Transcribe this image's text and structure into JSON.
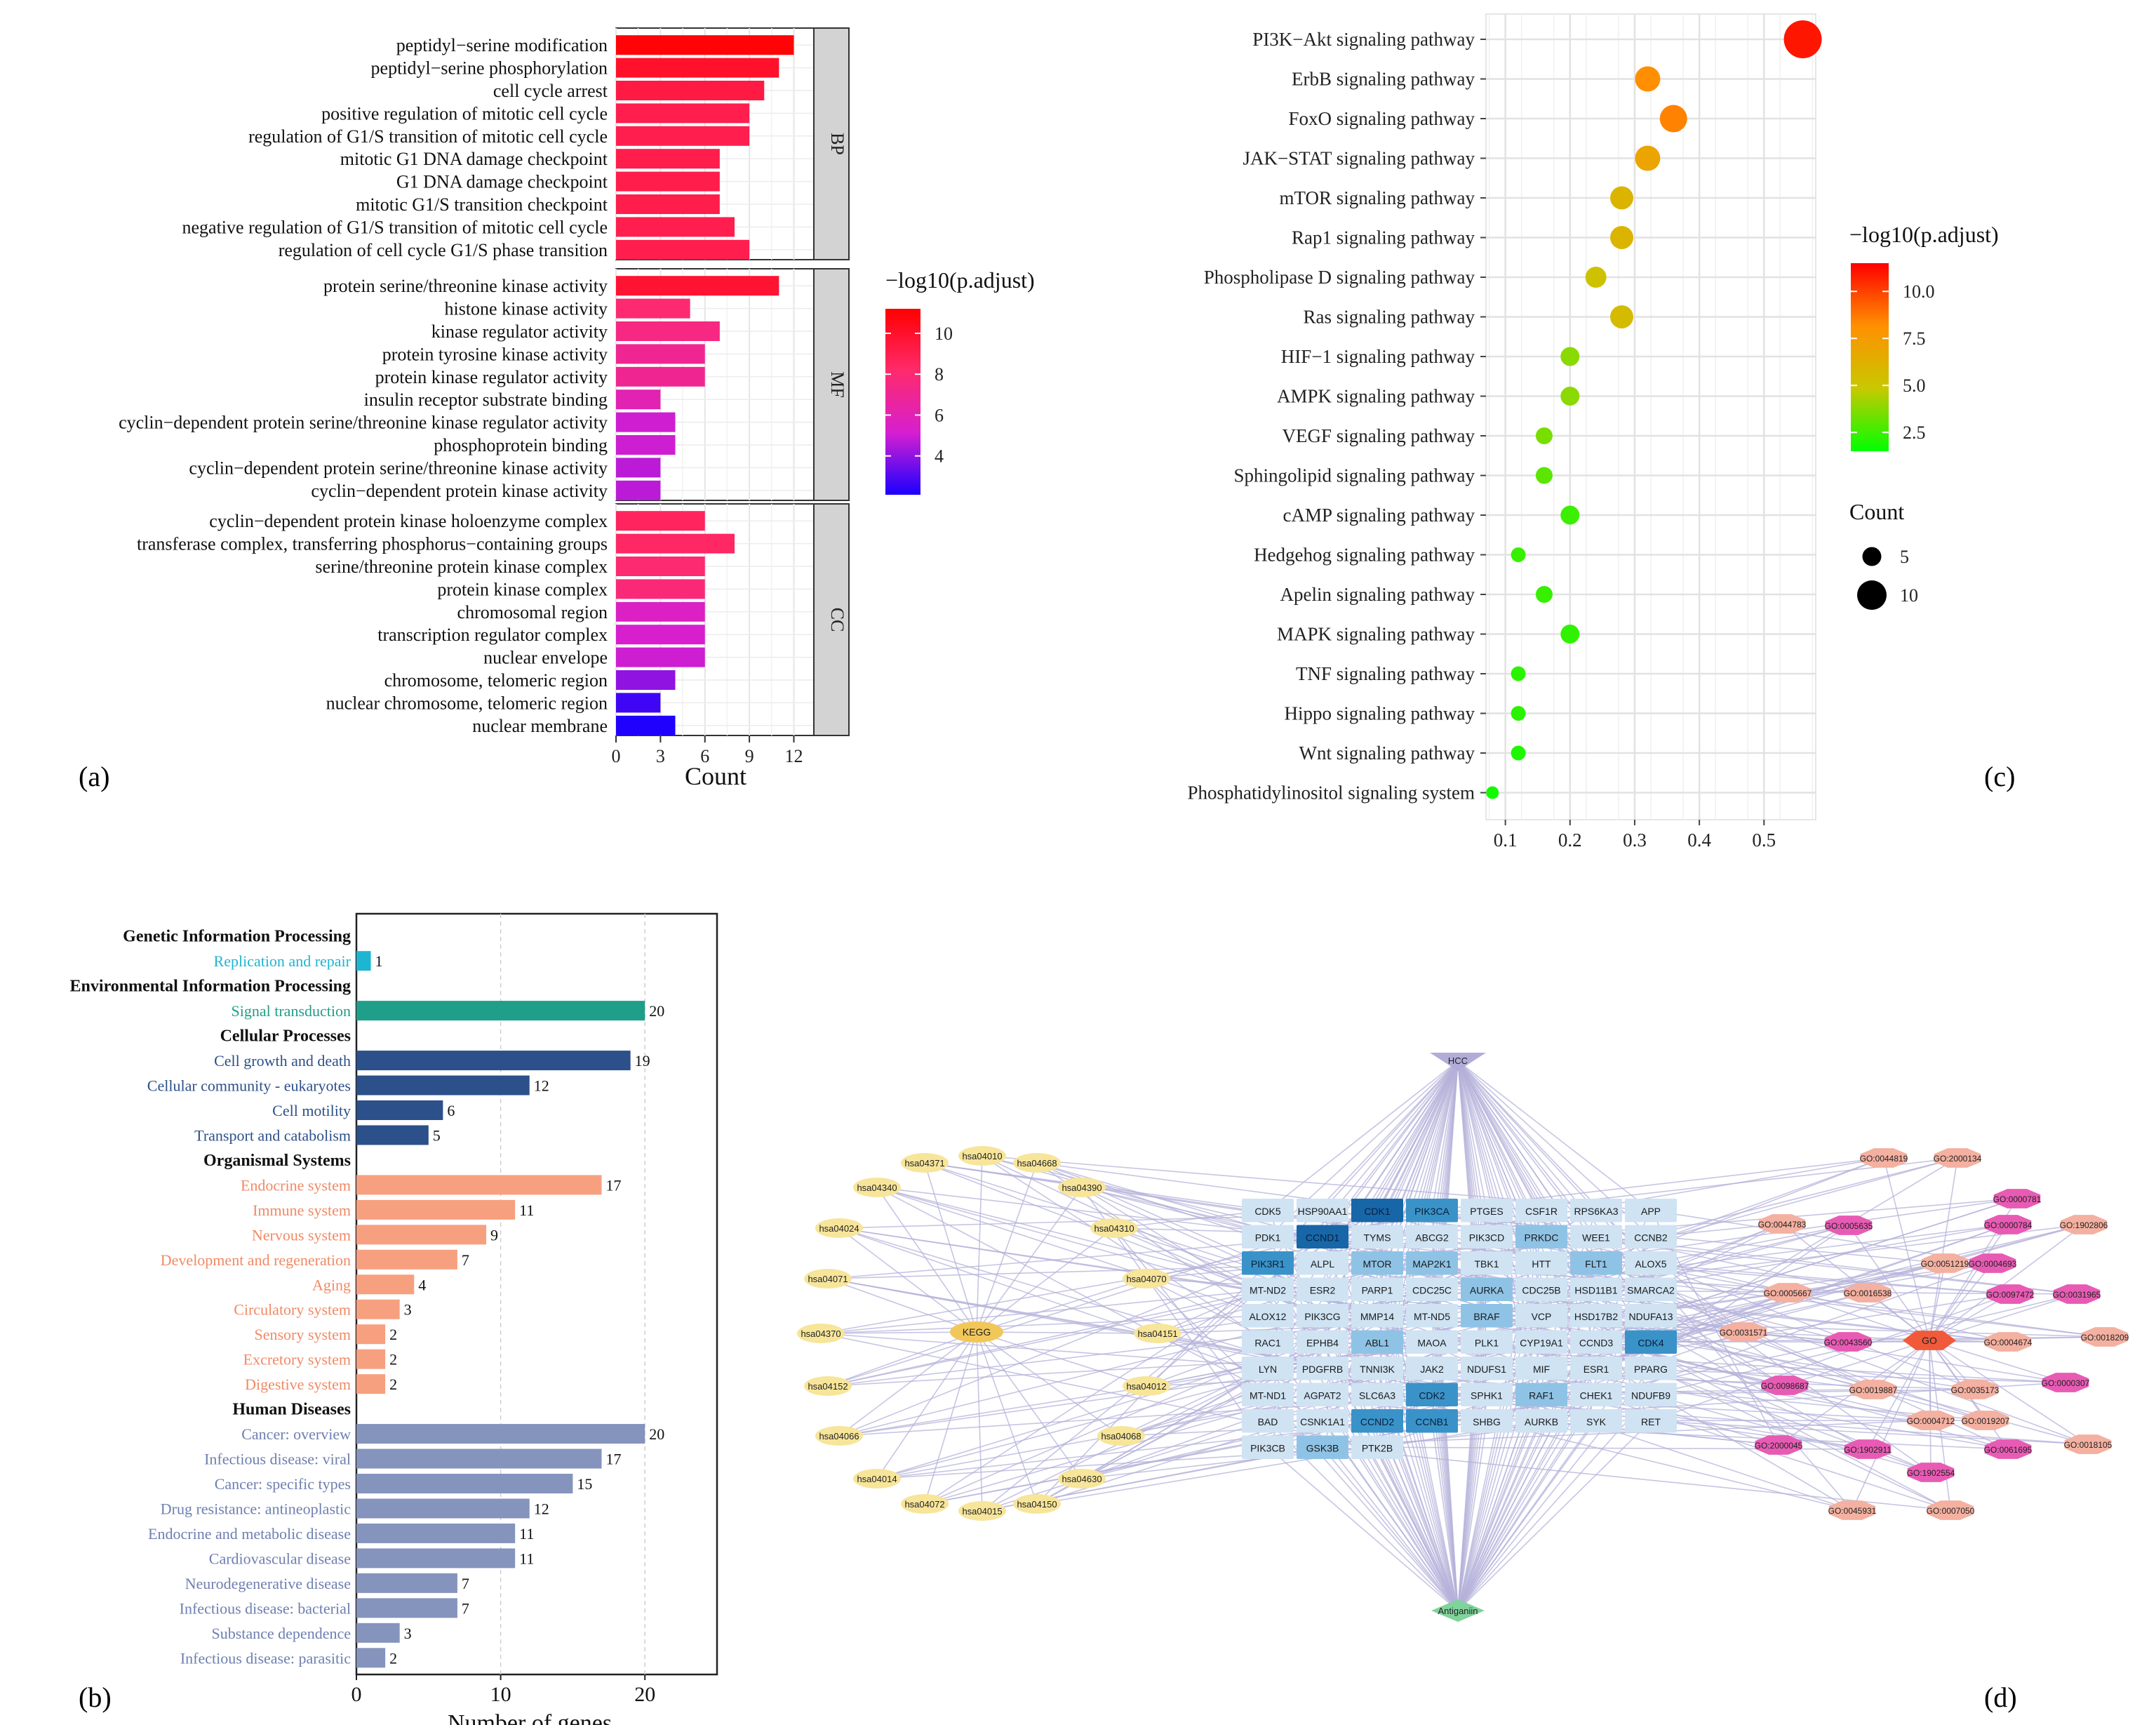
{
  "panel_labels": {
    "a": "(a)",
    "b": "(b)",
    "c": "(c)",
    "d": "(d)"
  },
  "chart_data": [
    {
      "id": "a",
      "type": "bar",
      "orientation": "horizontal",
      "xlabel": "Count",
      "xlim": [
        0,
        14
      ],
      "xticks": [
        0,
        3,
        6,
        9,
        12
      ],
      "color_scale": {
        "title": "−log10(p.adjust)",
        "ticks": [
          4,
          6,
          8,
          10
        ],
        "range": [
          2.1,
          11.2
        ],
        "colors": [
          "#1a00ff",
          "#d61fd0",
          "#ff2a6c",
          "#ff0000"
        ]
      },
      "facets": [
        {
          "name": "BP",
          "terms": [
            {
              "label": "peptidyl−serine modification",
              "count": 12,
              "neglog": 11.0
            },
            {
              "label": "peptidyl−serine phosphorylation",
              "count": 11,
              "neglog": 10.0
            },
            {
              "label": "cell cycle arrest",
              "count": 10,
              "neglog": 9.3
            },
            {
              "label": "positive regulation of mitotic cell cycle",
              "count": 9,
              "neglog": 9.0
            },
            {
              "label": "regulation of G1/S transition of mitotic cell cycle",
              "count": 9,
              "neglog": 9.0
            },
            {
              "label": "mitotic G1 DNA damage checkpoint",
              "count": 7,
              "neglog": 9.1
            },
            {
              "label": "G1 DNA damage checkpoint",
              "count": 7,
              "neglog": 9.1
            },
            {
              "label": "mitotic G1/S transition checkpoint",
              "count": 7,
              "neglog": 9.1
            },
            {
              "label": "negative regulation of G1/S transition of mitotic cell cycle",
              "count": 8,
              "neglog": 9.0
            },
            {
              "label": "regulation of cell cycle G1/S phase transition",
              "count": 9,
              "neglog": 9.0
            }
          ]
        },
        {
          "name": "MF",
          "terms": [
            {
              "label": "protein serine/threonine kinase activity",
              "count": 11,
              "neglog": 9.8
            },
            {
              "label": "histone kinase activity",
              "count": 5,
              "neglog": 8.0
            },
            {
              "label": "kinase regulator activity",
              "count": 7,
              "neglog": 7.5
            },
            {
              "label": "protein tyrosine kinase activity",
              "count": 6,
              "neglog": 7.0
            },
            {
              "label": "protein kinase regulator activity",
              "count": 6,
              "neglog": 7.0
            },
            {
              "label": "insulin receptor substrate binding",
              "count": 3,
              "neglog": 6.0
            },
            {
              "label": "cyclin−dependent protein serine/threonine kinase regulator activity",
              "count": 4,
              "neglog": 5.0
            },
            {
              "label": "phosphoprotein binding",
              "count": 4,
              "neglog": 5.0
            },
            {
              "label": "cyclin−dependent protein serine/threonine kinase activity",
              "count": 3,
              "neglog": 4.7
            },
            {
              "label": "cyclin−dependent protein kinase activity",
              "count": 3,
              "neglog": 4.7
            }
          ]
        },
        {
          "name": "CC",
          "terms": [
            {
              "label": "cyclin−dependent protein kinase holoenzyme complex",
              "count": 6,
              "neglog": 8.6
            },
            {
              "label": "transferase complex, transferring phosphorus−containing groups",
              "count": 8,
              "neglog": 8.4
            },
            {
              "label": "serine/threonine protein kinase complex",
              "count": 6,
              "neglog": 8.0
            },
            {
              "label": "protein kinase complex",
              "count": 6,
              "neglog": 7.8
            },
            {
              "label": "chromosomal region",
              "count": 6,
              "neglog": 5.5
            },
            {
              "label": "transcription regulator complex",
              "count": 6,
              "neglog": 5.2
            },
            {
              "label": "nuclear envelope",
              "count": 6,
              "neglog": 5.0
            },
            {
              "label": "chromosome, telomeric region",
              "count": 4,
              "neglog": 4.0
            },
            {
              "label": "nuclear chromosome, telomeric region",
              "count": 3,
              "neglog": 2.7
            },
            {
              "label": "nuclear membrane",
              "count": 4,
              "neglog": 2.2
            }
          ]
        }
      ]
    },
    {
      "id": "b",
      "type": "bar",
      "orientation": "horizontal",
      "xlabel": "Number of genes",
      "xlim": [
        0,
        25
      ],
      "xticks": [
        0,
        10,
        20
      ],
      "rows": [
        {
          "label": "Genetic Information Processing",
          "header": true
        },
        {
          "label": "Replication and repair",
          "value": 1,
          "color": "#1eb5d2"
        },
        {
          "label": "Environmental Information Processing",
          "header": true
        },
        {
          "label": "Signal transduction",
          "value": 20,
          "color": "#1f9e89"
        },
        {
          "label": "Cellular Processes",
          "header": true
        },
        {
          "label": "Cell growth and death",
          "value": 19,
          "color": "#2c5089"
        },
        {
          "label": "Cellular community - eukaryotes",
          "value": 12,
          "color": "#2c5089"
        },
        {
          "label": "Cell motility",
          "value": 6,
          "color": "#2c5089"
        },
        {
          "label": "Transport and catabolism",
          "value": 5,
          "color": "#2c5089"
        },
        {
          "label": "Organismal Systems",
          "header": true
        },
        {
          "label": "Endocrine system",
          "value": 17,
          "color": "#f7a080"
        },
        {
          "label": "Immune system",
          "value": 11,
          "color": "#f7a080"
        },
        {
          "label": "Nervous system",
          "value": 9,
          "color": "#f7a080"
        },
        {
          "label": "Development and regeneration",
          "value": 7,
          "color": "#f7a080"
        },
        {
          "label": "Aging",
          "value": 4,
          "color": "#f7a080"
        },
        {
          "label": "Circulatory system",
          "value": 3,
          "color": "#f7a080"
        },
        {
          "label": "Sensory system",
          "value": 2,
          "color": "#f7a080"
        },
        {
          "label": "Excretory system",
          "value": 2,
          "color": "#f7a080"
        },
        {
          "label": "Digestive system",
          "value": 2,
          "color": "#f7a080"
        },
        {
          "label": "Human Diseases",
          "header": true
        },
        {
          "label": "Cancer: overview",
          "value": 20,
          "color": "#8594bd"
        },
        {
          "label": "Infectious disease: viral",
          "value": 17,
          "color": "#8594bd"
        },
        {
          "label": "Cancer: specific types",
          "value": 15,
          "color": "#8594bd"
        },
        {
          "label": "Drug resistance: antineoplastic",
          "value": 12,
          "color": "#8594bd"
        },
        {
          "label": "Endocrine and metabolic disease",
          "value": 11,
          "color": "#8594bd"
        },
        {
          "label": "Cardiovascular disease",
          "value": 11,
          "color": "#8594bd"
        },
        {
          "label": "Neurodegenerative disease",
          "value": 7,
          "color": "#8594bd"
        },
        {
          "label": "Infectious disease: bacterial",
          "value": 7,
          "color": "#8594bd"
        },
        {
          "label": "Substance dependence",
          "value": 3,
          "color": "#8594bd"
        },
        {
          "label": "Infectious disease: parasitic",
          "value": 2,
          "color": "#8594bd"
        }
      ]
    },
    {
      "id": "c",
      "type": "scatter",
      "xlim": [
        0.07,
        0.58
      ],
      "xticks": [
        0.1,
        0.2,
        0.3,
        0.4,
        0.5
      ],
      "color_scale": {
        "title": "−log10(p.adjust)",
        "ticks": [
          2.5,
          5.0,
          7.5,
          10.0
        ],
        "range": [
          1.5,
          11.5
        ],
        "colors": [
          "#00ff00",
          "#c8c800",
          "#ff9000",
          "#ff0000"
        ]
      },
      "size_legend": {
        "title": "Count",
        "entries": [
          5,
          10
        ]
      },
      "points": [
        {
          "label": "PI3K−Akt signaling pathway",
          "x": 0.56,
          "count": 14,
          "neglog": 11.0
        },
        {
          "label": "ErbB signaling pathway",
          "x": 0.32,
          "count": 8,
          "neglog": 8.2
        },
        {
          "label": "FoxO signaling pathway",
          "x": 0.36,
          "count": 9,
          "neglog": 8.5
        },
        {
          "label": "JAK−STAT signaling pathway",
          "x": 0.32,
          "count": 8,
          "neglog": 7.0
        },
        {
          "label": "mTOR signaling pathway",
          "x": 0.28,
          "count": 7,
          "neglog": 6.0
        },
        {
          "label": "Rap1 signaling pathway",
          "x": 0.28,
          "count": 7,
          "neglog": 6.0
        },
        {
          "label": "Phospholipase D signaling pathway",
          "x": 0.24,
          "count": 6,
          "neglog": 5.2
        },
        {
          "label": "Ras signaling pathway",
          "x": 0.28,
          "count": 7,
          "neglog": 5.6
        },
        {
          "label": "HIF−1 signaling pathway",
          "x": 0.2,
          "count": 5,
          "neglog": 3.8
        },
        {
          "label": "AMPK signaling pathway",
          "x": 0.2,
          "count": 5,
          "neglog": 3.8
        },
        {
          "label": "VEGF signaling pathway",
          "x": 0.16,
          "count": 4,
          "neglog": 3.5
        },
        {
          "label": "Sphingolipid signaling pathway",
          "x": 0.16,
          "count": 4,
          "neglog": 3.0
        },
        {
          "label": "cAMP signaling pathway",
          "x": 0.2,
          "count": 5,
          "neglog": 2.5
        },
        {
          "label": "Hedgehog signaling pathway",
          "x": 0.12,
          "count": 3,
          "neglog": 2.4
        },
        {
          "label": "Apelin signaling pathway",
          "x": 0.16,
          "count": 4,
          "neglog": 2.4
        },
        {
          "label": "MAPK signaling pathway",
          "x": 0.2,
          "count": 5,
          "neglog": 2.3
        },
        {
          "label": "TNF signaling pathway",
          "x": 0.12,
          "count": 3,
          "neglog": 2.2
        },
        {
          "label": "Hippo signaling pathway",
          "x": 0.12,
          "count": 3,
          "neglog": 2.2
        },
        {
          "label": "Wnt signaling pathway",
          "x": 0.12,
          "count": 3,
          "neglog": 2.0
        },
        {
          "label": "Phosphatidylinositol signaling system",
          "x": 0.08,
          "count": 2,
          "neglog": 1.8
        }
      ]
    }
  ],
  "network": {
    "hub_top": "HCC",
    "hub_bottom": "Antiganiin",
    "hub_left": "KEGG",
    "hub_right": "GO",
    "kegg_nodes": [
      "hsa04371",
      "hsa04010",
      "hsa04668",
      "hsa04340",
      "hsa04390",
      "hsa04024",
      "hsa04310",
      "hsa04071",
      "hsa04070",
      "hsa04370",
      "hsa04151",
      "hsa04152",
      "hsa04012",
      "hsa04066",
      "hsa04068",
      "hsa04014",
      "hsa04630",
      "hsa04072",
      "hsa04015",
      "hsa04150"
    ],
    "go_nodes": [
      "GO:0044819",
      "GO:2000134",
      "GO:0000781",
      "GO:0044783",
      "GO:0005635",
      "GO:0000784",
      "GO:1902806",
      "GO:0051219",
      "GO:0004693",
      "GO:0005667",
      "GO:0016538",
      "GO:0097472",
      "GO:0031965",
      "GO:0031571",
      "GO:0043560",
      "GO:0004674",
      "GO:0018209",
      "GO:0098687",
      "GO:0019887",
      "GO:0035173",
      "GO:0000307",
      "GO:0004712",
      "GO:0019207",
      "GO:2000045",
      "GO:1902911",
      "GO:0061695",
      "GO:0018105",
      "GO:1902554",
      "GO:0045931",
      "GO:0007050"
    ],
    "gene_rows": [
      [
        "CDK5",
        "HSP90AA1",
        "CDK1",
        "PIK3CA",
        "PTGES",
        "CSF1R",
        "RPS6KA3",
        "APP"
      ],
      [
        "PDK1",
        "CCND1",
        "TYMS",
        "ABCG2",
        "PIK3CD",
        "PRKDC",
        "WEE1",
        "CCNB2"
      ],
      [
        "PIK3R1",
        "ALPL",
        "MTOR",
        "MAP2K1",
        "TBK1",
        "HTT",
        "FLT1",
        "ALOX5"
      ],
      [
        "MT-ND2",
        "ESR2",
        "PARP1",
        "CDC25C",
        "AURKA",
        "CDC25B",
        "HSD11B1",
        "SMARCA2"
      ],
      [
        "ALOX12",
        "PIK3CG",
        "MMP14",
        "MT-ND5",
        "BRAF",
        "VCP",
        "HSD17B2",
        "NDUFA13"
      ],
      [
        "RAC1",
        "EPHB4",
        "ABL1",
        "MAOA",
        "PLK1",
        "CYP19A1",
        "CCND3",
        "CDK4"
      ],
      [
        "LYN",
        "PDGFRB",
        "TNNI3K",
        "JAK2",
        "NDUFS1",
        "MIF",
        "ESR1",
        "PPARG"
      ],
      [
        "MT-ND1",
        "AGPAT2",
        "SLC6A3",
        "CDK2",
        "SPHK1",
        "RAF1",
        "CHEK1",
        "NDUFB9"
      ],
      [
        "BAD",
        "CSNK1A1",
        "CCND2",
        "CCNB1",
        "SHBG",
        "AURKB",
        "SYK",
        "RET"
      ],
      [
        "PIK3CB",
        "GSK3B",
        "PTK2B"
      ]
    ],
    "gene_levels": [
      [
        0,
        0,
        3,
        2,
        0,
        0,
        0,
        0
      ],
      [
        0,
        3,
        0,
        0,
        0,
        1,
        0,
        0
      ],
      [
        2,
        0,
        1,
        1,
        0,
        0,
        1,
        0
      ],
      [
        0,
        0,
        0,
        0,
        1,
        0,
        0,
        0
      ],
      [
        0,
        0,
        0,
        0,
        1,
        0,
        0,
        0
      ],
      [
        0,
        0,
        1,
        0,
        0,
        0,
        0,
        2
      ],
      [
        0,
        0,
        0,
        0,
        0,
        0,
        0,
        0
      ],
      [
        0,
        0,
        0,
        2,
        0,
        1,
        0,
        0
      ],
      [
        0,
        0,
        2,
        2,
        0,
        0,
        0,
        0
      ],
      [
        0,
        1,
        0
      ]
    ],
    "colors": {
      "gene0": "#cfe3f3",
      "gene1": "#8fc3e6",
      "gene2": "#3a93c8",
      "gene3": "#1767a8",
      "kegg": "#f7e59a",
      "go_light": "#f4b0a0",
      "go_pink": "#e85bb4",
      "go_hub": "#f05a3a",
      "edge": "#b4b2da",
      "hub_top": "#b2acd8",
      "hub_bottom": "#7fd39b"
    }
  }
}
